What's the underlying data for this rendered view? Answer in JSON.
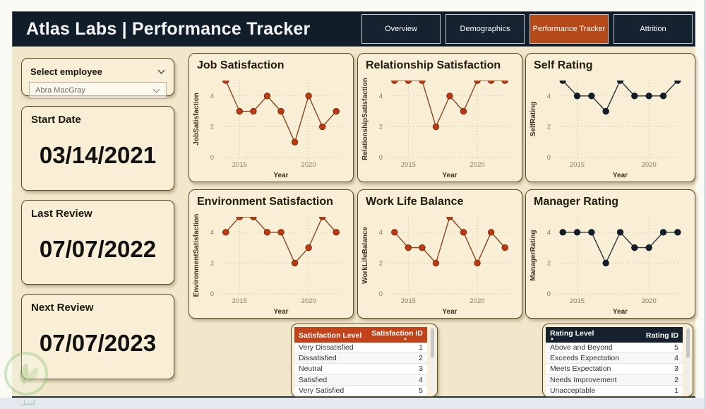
{
  "header": {
    "title": "Atlas Labs | Performance Tracker",
    "tabs": [
      {
        "label": "Overview",
        "active": false
      },
      {
        "label": "Demographics",
        "active": false
      },
      {
        "label": "Performance Tracker",
        "active": true
      },
      {
        "label": "Attrition",
        "active": false
      }
    ]
  },
  "sidebar": {
    "select_label": "Select employee",
    "employee": "Abra MacGray",
    "cards": [
      {
        "label": "Start Date",
        "value": "03/14/2021"
      },
      {
        "label": "Last Review",
        "value": "07/07/2022"
      },
      {
        "label": "Next Review",
        "value": "07/07/2023"
      }
    ]
  },
  "chart_data": [
    {
      "type": "line",
      "title": "Job Satisfaction",
      "ylabel": "JobSatisfaction",
      "xlabel": "Year",
      "x": [
        2014,
        2015,
        2016,
        2017,
        2018,
        2019,
        2020,
        2021,
        2022
      ],
      "values": [
        5,
        3,
        3,
        4,
        3,
        1,
        4,
        2,
        3
      ],
      "ylim": [
        0,
        5
      ],
      "yticks": [
        0,
        2,
        4
      ],
      "xticks": [
        2015,
        2020
      ],
      "grid": "dotted",
      "legend": "none",
      "line_color": "#8a4520",
      "marker_color": "#bf3a12",
      "marker_edge": "#7a2a08"
    },
    {
      "type": "line",
      "title": "Relationship Satisfaction",
      "ylabel": "RelationshipSatisfaction",
      "xlabel": "Year",
      "x": [
        2014,
        2015,
        2016,
        2017,
        2018,
        2019,
        2020,
        2021,
        2022
      ],
      "values": [
        5,
        5,
        5,
        2,
        4,
        3,
        5,
        5,
        5
      ],
      "ylim": [
        0,
        5
      ],
      "yticks": [
        0,
        2,
        4
      ],
      "xticks": [
        2015,
        2020
      ],
      "grid": "dotted",
      "legend": "none",
      "line_color": "#8a4520",
      "marker_color": "#bf3a12",
      "marker_edge": "#7a2a08"
    },
    {
      "type": "line",
      "title": "Self Rating",
      "ylabel": "SelfRating",
      "xlabel": "Year",
      "x": [
        2014,
        2015,
        2016,
        2017,
        2018,
        2019,
        2020,
        2021,
        2022
      ],
      "values": [
        5,
        4,
        4,
        3,
        5,
        4,
        4,
        4,
        5
      ],
      "ylim": [
        0,
        5
      ],
      "yticks": [
        0,
        2,
        4
      ],
      "xticks": [
        2015,
        2020
      ],
      "grid": "dotted",
      "legend": "none",
      "line_color": "#27313c",
      "marker_color": "#131d29",
      "marker_edge": "#0e1722"
    },
    {
      "type": "line",
      "title": "Environment Satisfaction",
      "ylabel": "EnvironmentSatisfaction",
      "xlabel": "Year",
      "x": [
        2014,
        2015,
        2016,
        2017,
        2018,
        2019,
        2020,
        2021,
        2022
      ],
      "values": [
        4,
        5,
        5,
        4,
        4,
        2,
        3,
        5,
        4
      ],
      "ylim": [
        0,
        5
      ],
      "yticks": [
        0,
        2,
        4
      ],
      "xticks": [
        2015,
        2020
      ],
      "grid": "dotted",
      "legend": "none",
      "line_color": "#8a4520",
      "marker_color": "#bf3a12",
      "marker_edge": "#7a2a08"
    },
    {
      "type": "line",
      "title": "Work Life Balance",
      "ylabel": "WorkLifeBalance",
      "xlabel": "Year",
      "x": [
        2014,
        2015,
        2016,
        2017,
        2018,
        2019,
        2020,
        2021,
        2022
      ],
      "values": [
        4,
        3,
        3,
        2,
        5,
        4,
        2,
        4,
        3
      ],
      "ylim": [
        0,
        5
      ],
      "yticks": [
        0,
        2,
        4
      ],
      "xticks": [
        2015,
        2020
      ],
      "grid": "dotted",
      "legend": "none",
      "line_color": "#8a4520",
      "marker_color": "#bf3a12",
      "marker_edge": "#7a2a08"
    },
    {
      "type": "line",
      "title": "Manager Rating",
      "ylabel": "ManagerRating",
      "xlabel": "Year",
      "x": [
        2014,
        2015,
        2016,
        2017,
        2018,
        2019,
        2020,
        2021,
        2022
      ],
      "values": [
        4,
        4,
        4,
        2,
        4,
        3,
        3,
        4,
        4
      ],
      "ylim": [
        0,
        5
      ],
      "yticks": [
        0,
        2,
        4
      ],
      "xticks": [
        2015,
        2020
      ],
      "grid": "dotted",
      "legend": "none",
      "line_color": "#27313c",
      "marker_color": "#131d29",
      "marker_edge": "#0e1722"
    }
  ],
  "tables": [
    {
      "headers": [
        "Satisfaction Level",
        "Satisfaction ID"
      ],
      "sort_col": 1,
      "header_bg": "#c2431a",
      "rows": [
        [
          "Very Dissatisfied",
          "1"
        ],
        [
          "Dissatisfied",
          "2"
        ],
        [
          "Neutral",
          "3"
        ],
        [
          "Satisfied",
          "4"
        ],
        [
          "Very Satisfied",
          "5"
        ]
      ]
    },
    {
      "headers": [
        "Rating Level",
        "Rating ID"
      ],
      "sort_col": 0,
      "header_bg": "#16212d",
      "rows": [
        [
          "Above and Beyond",
          "5"
        ],
        [
          "Exceeds Expectation",
          "4"
        ],
        [
          "Meets Expectation",
          "3"
        ],
        [
          "Needs Improvement",
          "2"
        ],
        [
          "Unacceptable",
          "1"
        ]
      ]
    }
  ],
  "watermark": {
    "text": "كسيل"
  },
  "colors": {
    "accent_orange": "#b54918",
    "header_navy": "#111e2a",
    "canvas_cream": "#f1e7cb",
    "card_cream": "#f8efd6"
  }
}
